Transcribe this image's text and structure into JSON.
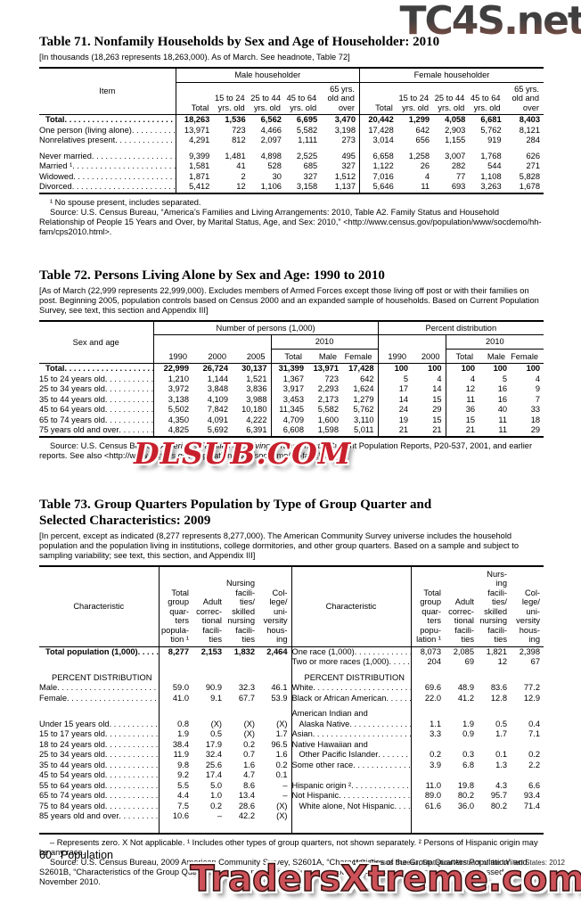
{
  "watermarks": {
    "top": "TC4S.net",
    "middle": "DLSUB.COM",
    "bottom": "TradersXtreme.com"
  },
  "table71": {
    "title": "Table 71. Nonfamily Households by Sex and Age of Householder: 2010",
    "note": "[In thousands (18,263 represents 18,263,000). As of March. See headnote, Table 72]",
    "item_header": "Item",
    "group_male": "Male householder",
    "group_female": "Female householder",
    "age_cols": [
      "Total",
      "15 to 24\nyrs. old",
      "25 to 44\nyrs. old",
      "45 to 64\nyrs. old",
      "65 yrs.\nold and\nover"
    ],
    "rows": [
      {
        "label": "Total",
        "bold": true,
        "dots": true,
        "ind": 7,
        "v": [
          "18,263",
          "1,536",
          "6,562",
          "6,695",
          "3,470",
          "20,442",
          "1,299",
          "4,058",
          "6,681",
          "8,403"
        ]
      },
      {
        "label": "One person (living alone)",
        "dots": true,
        "v": [
          "13,971",
          "723",
          "4,466",
          "5,582",
          "3,198",
          "17,428",
          "642",
          "2,903",
          "5,762",
          "8,121"
        ]
      },
      {
        "label": "Nonrelatives present",
        "dots": true,
        "v": [
          "4,291",
          "812",
          "2,097",
          "1,111",
          "273",
          "3,014",
          "656",
          "1,155",
          "919",
          "284"
        ]
      },
      {
        "label": "Never married",
        "dots": true,
        "gap": true,
        "v": [
          "9,399",
          "1,481",
          "4,898",
          "2,525",
          "495",
          "6,658",
          "1,258",
          "3,007",
          "1,768",
          "626"
        ]
      },
      {
        "label": "Married ¹",
        "dots": true,
        "v": [
          "1,581",
          "41",
          "528",
          "685",
          "327",
          "1,122",
          "26",
          "282",
          "544",
          "271"
        ]
      },
      {
        "label": "Widowed",
        "dots": true,
        "v": [
          "1,871",
          "2",
          "30",
          "327",
          "1,512",
          "7,016",
          "4",
          "77",
          "1,108",
          "5,828"
        ]
      },
      {
        "label": "Divorced",
        "dots": true,
        "v": [
          "5,412",
          "12",
          "1,106",
          "3,158",
          "1,137",
          "5,646",
          "11",
          "693",
          "3,263",
          "1,678"
        ]
      }
    ],
    "footnote": "¹ No spouse present, includes separated.",
    "source": "Source: U.S. Census Bureau, “America’s Families and Living Arrangements: 2010, Table A2. Family Status and Household Relationship of People 15 Years and Over, by Marital Status, Age, and Sex: 2010,” <http://www.census.gov/population/www/socdemo/hh-fam/cps2010.html>."
  },
  "table72": {
    "title": "Table 72. Persons Living Alone by Sex and Age: 1990 to 2010",
    "note": "[As of March (22,999 represents 22,999,000). Excludes members of Armed Forces except those living off post or with their families on post. Beginning 2005, population controls based on Census 2000 and an expanded sample of households. Based on Current Population Survey, see text, this section and Appendix III]",
    "item_header": "Sex and age",
    "group_number": "Number of persons (1,000)",
    "group_percent": "Percent distribution",
    "y2010": "2010",
    "np_years": [
      "1990",
      "2000",
      "2005"
    ],
    "pct_years": [
      "1990",
      "2000"
    ],
    "sub_cols": [
      "Total",
      "Male",
      "Female"
    ],
    "rows": [
      {
        "label": "Total",
        "bold": true,
        "dots": true,
        "ind": 7,
        "v": [
          "22,999",
          "26,724",
          "30,137",
          "31,399",
          "13,971",
          "17,428",
          "100",
          "100",
          "100",
          "100",
          "100"
        ]
      },
      {
        "label": "15 to 24 years old",
        "dots": true,
        "v": [
          "1,210",
          "1,144",
          "1,521",
          "1,367",
          "723",
          "642",
          "5",
          "4",
          "4",
          "5",
          "4"
        ]
      },
      {
        "label": "25 to 34 years old",
        "dots": true,
        "v": [
          "3,972",
          "3,848",
          "3,836",
          "3,917",
          "2,293",
          "1,624",
          "17",
          "14",
          "12",
          "16",
          "9"
        ]
      },
      {
        "label": "35 to 44 years old",
        "dots": true,
        "v": [
          "3,138",
          "4,109",
          "3,988",
          "3,453",
          "2,173",
          "1,279",
          "14",
          "15",
          "11",
          "16",
          "7"
        ]
      },
      {
        "label": "45 to 64 years old",
        "dots": true,
        "v": [
          "5,502",
          "7,842",
          "10,180",
          "11,345",
          "5,582",
          "5,762",
          "24",
          "29",
          "36",
          "40",
          "33"
        ]
      },
      {
        "label": "65 to 74 years old",
        "dots": true,
        "v": [
          "4,350",
          "4,091",
          "4,222",
          "4,709",
          "1,600",
          "3,110",
          "19",
          "15",
          "15",
          "11",
          "18"
        ]
      },
      {
        "label": "75 years old and over",
        "dots": true,
        "v": [
          "4,825",
          "5,692",
          "6,391",
          "6,608",
          "1,598",
          "5,011",
          "21",
          "21",
          "21",
          "11",
          "29"
        ]
      }
    ],
    "source_parts": [
      "Source: U.S. Census Bureau, ",
      "America’s Families and Living Arrangements",
      ", Current Population Reports, P20-537, 2001, and earlier reports.  See also <http://www.census.gov/population/www/socdemo/hh-fam.html>."
    ]
  },
  "table73": {
    "title": "Table 73. Group Quarters Population by Type of Group Quarter and\nSelected Characteristics: 2009",
    "note": "[In percent, except as indicated (8,277 represents 8,277,000). The American Community Survey universe includes the household population and the population living in institutions, college dormitories, and other group quarters. Based on a sample and subject to sampling variability; see text, this section, and Appendix III]",
    "char_header": "Characteristic",
    "cols_left": [
      "Total\ngroup\nquar-\nters\npopula-\ntion ¹",
      "Adult\ncorrec-\ntional\nfacili-\nties",
      "Nursing\nfacili-\nties/\nskilled\nnursing\nfacili-\nties",
      "Col-\nlege/\nuni-\nversity\nhous-\ning"
    ],
    "cols_right": [
      "Total\ngroup\nquar-\nters\npopu-\nlation ¹",
      "Adult\ncorrec-\ntional\nfacili-\nties",
      "Nurs-\ning\nfacili-\nties/\nskilled\nnursing\nfacili-\nties",
      "Col-\nlege/\nuni-\nversity\nhous-\ning"
    ],
    "rows": [
      {
        "l": {
          "label": "Total population (1,000)",
          "bold": true,
          "dots": true,
          "ind": 7,
          "v": [
            "8,277",
            "2,153",
            "1,832",
            "2,464"
          ]
        },
        "r": {
          "label": "One race (1,000)",
          "dots": true,
          "v": [
            "8,073",
            "2,085",
            "1,821",
            "2,398"
          ]
        }
      },
      {
        "l": {
          "label": "",
          "v": []
        },
        "r": {
          "label": "Two or more races (1,000)",
          "dots": true,
          "v": [
            "204",
            "69",
            "12",
            "67"
          ]
        }
      },
      {
        "l": {
          "label": "PERCENT DISTRIBUTION",
          "ind": 14,
          "v": []
        },
        "r": {
          "label": "PERCENT DISTRIBUTION",
          "ind": 14,
          "v": []
        },
        "gap": true
      },
      {
        "l": {
          "label": "Male",
          "dots": true,
          "v": [
            "59.0",
            "90.9",
            "32.3",
            "46.1"
          ]
        },
        "r": {
          "label": "White",
          "dots": true,
          "v": [
            "69.6",
            "48.9",
            "83.6",
            "77.2"
          ]
        }
      },
      {
        "l": {
          "label": "Female",
          "dots": true,
          "v": [
            "41.0",
            "9.1",
            "67.7",
            "53.9"
          ]
        },
        "r": {
          "label": "Black or African American",
          "dots": true,
          "v": [
            "22.0",
            "41.2",
            "12.8",
            "12.9"
          ]
        }
      },
      {
        "l": {
          "label": "",
          "v": []
        },
        "r": {
          "label": "American Indian and",
          "v": []
        },
        "gap": true
      },
      {
        "l": {
          "label": "Under 15 years old",
          "dots": true,
          "v": [
            "0.8",
            "(X)",
            "(X)",
            "(X)"
          ]
        },
        "r": {
          "label": "Alaska Native",
          "ind": 8,
          "dots": true,
          "v": [
            "1.1",
            "1.9",
            "0.5",
            "0.4"
          ]
        }
      },
      {
        "l": {
          "label": "15 to 17 years old",
          "dots": true,
          "v": [
            "1.9",
            "0.5",
            "(X)",
            "1.7"
          ]
        },
        "r": {
          "label": "Asian",
          "dots": true,
          "v": [
            "3.3",
            "0.9",
            "1.7",
            "7.1"
          ]
        }
      },
      {
        "l": {
          "label": "18 to 24 years old",
          "dots": true,
          "v": [
            "38.4",
            "17.9",
            "0.2",
            "96.5"
          ]
        },
        "r": {
          "label": "Native Hawaiian and",
          "v": []
        }
      },
      {
        "l": {
          "label": "25 to 34 years old",
          "dots": true,
          "v": [
            "11.9",
            "32.4",
            "0.7",
            "1.6"
          ]
        },
        "r": {
          "label": "Other Pacific Islander",
          "ind": 8,
          "dots": true,
          "v": [
            "0.2",
            "0.3",
            "0.1",
            "0.2"
          ]
        }
      },
      {
        "l": {
          "label": "35 to 44 years old",
          "dots": true,
          "v": [
            "9.8",
            "25.6",
            "1.6",
            "0.2"
          ]
        },
        "r": {
          "label": "Some other race",
          "dots": true,
          "v": [
            "3.9",
            "6.8",
            "1.3",
            "2.2"
          ]
        }
      },
      {
        "l": {
          "label": "45 to 54 years old",
          "dots": true,
          "v": [
            "9.2",
            "17.4",
            "4.7",
            "0.1"
          ]
        },
        "r": {
          "label": "",
          "v": []
        }
      },
      {
        "l": {
          "label": "55 to 64 years old",
          "dots": true,
          "v": [
            "5.5",
            "5.0",
            "8.6",
            "–"
          ]
        },
        "r": {
          "label": "Hispanic origin ²",
          "dots": true,
          "v": [
            "11.0",
            "19.8",
            "4.3",
            "6.6"
          ]
        }
      },
      {
        "l": {
          "label": "65 to 74 years old",
          "dots": true,
          "v": [
            "4.4",
            "1.0",
            "13.4",
            "–"
          ]
        },
        "r": {
          "label": "Not Hispanic",
          "dots": true,
          "v": [
            "89.0",
            "80.2",
            "95.7",
            "93.4"
          ]
        }
      },
      {
        "l": {
          "label": "75 to 84 years old",
          "dots": true,
          "v": [
            "7.5",
            "0.2",
            "28.6",
            "(X)"
          ]
        },
        "r": {
          "label": "White alone, Not Hispanic",
          "ind": 8,
          "dots": true,
          "v": [
            "61.6",
            "36.0",
            "80.2",
            "71.4"
          ]
        }
      },
      {
        "l": {
          "label": "85 years old and over",
          "dots": true,
          "v": [
            "10.6",
            "–",
            "42.2",
            "(X)"
          ]
        },
        "r": {
          "label": "",
          "v": []
        }
      }
    ],
    "footnote": "– Represents zero. X Not applicable. ¹ Includes other types of group quarters, not shown separately. ² Persons of Hispanic origin may be any race.",
    "source": "Source: U.S. Census Bureau, 2009 American Community Survey, S2601A, “Characteristics of the Group Quarters Population” and S2601B, “Characteristics of the Group Quarters Population by Group Quarters Type,” <http://factfinder.census.gov/>, accessed November 2010."
  },
  "footer": {
    "page_number": "60",
    "section": "Population",
    "credit": "U.S. Census Bureau, Statistical Abstract of the United States: 2012"
  }
}
